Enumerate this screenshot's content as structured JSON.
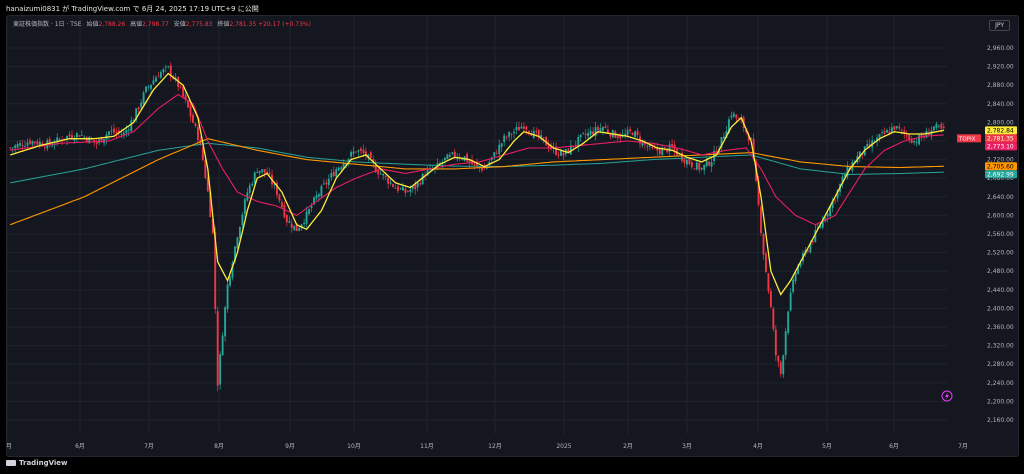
{
  "header": {
    "publish_text": "hanaizumi0831 が TradingView.com で 6月 24, 2025 17:19 UTC+9 に公開"
  },
  "legend": {
    "symbol": "東証株価指数 · 1日 · TSE",
    "open_label": "始値",
    "open": "2,788.26",
    "high_label": "高値",
    "high": "2,798.77",
    "low_label": "安値",
    "low": "2,775.83",
    "close_label": "終値",
    "close": "2,781.35",
    "change": "+20.17 (+0.73%)"
  },
  "currency": "JPY",
  "footer": {
    "brand": "TradingView"
  },
  "chart_data": {
    "type": "candlestick",
    "y_ticks": [
      "2,960.00",
      "2,920.00",
      "2,880.00",
      "2,840.00",
      "2,800.00",
      "2,760.00",
      "2,720.00",
      "2,680.00",
      "2,640.00",
      "2,600.00",
      "2,560.00",
      "2,520.00",
      "2,480.00",
      "2,440.00",
      "2,400.00",
      "2,360.00",
      "2,320.00",
      "2,280.00",
      "2,240.00",
      "2,200.00",
      "2,160.00"
    ],
    "ylim": [
      2130,
      2990
    ],
    "x_ticks": [
      "5月",
      "6月",
      "7月",
      "8月",
      "9月",
      "10月",
      "11月",
      "12月",
      "2025",
      "2月",
      "3月",
      "4月",
      "5月",
      "6月",
      "7月"
    ],
    "price_labels": [
      {
        "id": "ma-short",
        "text": "2,782.84",
        "value": 2782.84,
        "color": "#ffeb3b",
        "text_color": "#000000"
      },
      {
        "id": "symbol",
        "name": "TOPIX",
        "text": "2,781.35",
        "value": 2781.35,
        "color": "#f23645",
        "text_color": "#ffffff"
      },
      {
        "id": "ma-mid",
        "text": "2,773.10",
        "value": 2773.1,
        "color": "#e91e63",
        "text_color": "#ffffff"
      },
      {
        "id": "ma-long",
        "text": "2,705.60",
        "value": 2705.6,
        "color": "#ff9800",
        "text_color": "#000000"
      },
      {
        "id": "ma-xlong",
        "text": "2,692.99",
        "value": 2692.99,
        "color": "#26a69a",
        "text_color": "#ffffff"
      }
    ],
    "colors": {
      "up": "#26a69a",
      "down": "#f23645",
      "ma_short": "#ffeb3b",
      "ma_mid": "#e91e63",
      "ma_long": "#ff9800",
      "ma_xlong": "#26a69a",
      "background": "#14171f",
      "grid": "#1f232d"
    },
    "close_path": [
      [
        0,
        2745
      ],
      [
        8,
        2760
      ],
      [
        16,
        2752
      ],
      [
        22,
        2768
      ],
      [
        28,
        2775
      ],
      [
        35,
        2755
      ],
      [
        40,
        2780
      ],
      [
        46,
        2775
      ],
      [
        50,
        2810
      ],
      [
        55,
        2870
      ],
      [
        60,
        2905
      ],
      [
        64,
        2915
      ],
      [
        68,
        2880
      ],
      [
        72,
        2830
      ],
      [
        76,
        2770
      ],
      [
        78,
        2720
      ],
      [
        80,
        2650
      ],
      [
        82,
        2560
      ],
      [
        83,
        2400
      ],
      [
        84,
        2240
      ],
      [
        86,
        2350
      ],
      [
        88,
        2450
      ],
      [
        92,
        2560
      ],
      [
        96,
        2650
      ],
      [
        100,
        2700
      ],
      [
        104,
        2690
      ],
      [
        108,
        2650
      ],
      [
        112,
        2590
      ],
      [
        116,
        2570
      ],
      [
        120,
        2600
      ],
      [
        124,
        2640
      ],
      [
        128,
        2670
      ],
      [
        132,
        2700
      ],
      [
        136,
        2720
      ],
      [
        140,
        2740
      ],
      [
        144,
        2730
      ],
      [
        148,
        2700
      ],
      [
        152,
        2680
      ],
      [
        156,
        2660
      ],
      [
        160,
        2650
      ],
      [
        164,
        2660
      ],
      [
        168,
        2690
      ],
      [
        172,
        2700
      ],
      [
        176,
        2720
      ],
      [
        180,
        2730
      ],
      [
        184,
        2725
      ],
      [
        188,
        2705
      ],
      [
        192,
        2700
      ],
      [
        196,
        2730
      ],
      [
        200,
        2765
      ],
      [
        204,
        2780
      ],
      [
        208,
        2795
      ],
      [
        212,
        2775
      ],
      [
        216,
        2760
      ],
      [
        220,
        2740
      ],
      [
        224,
        2730
      ],
      [
        228,
        2750
      ],
      [
        232,
        2770
      ],
      [
        236,
        2780
      ],
      [
        240,
        2790
      ],
      [
        244,
        2775
      ],
      [
        248,
        2770
      ],
      [
        252,
        2780
      ],
      [
        256,
        2755
      ],
      [
        260,
        2740
      ],
      [
        264,
        2740
      ],
      [
        268,
        2745
      ],
      [
        272,
        2725
      ],
      [
        276,
        2710
      ],
      [
        280,
        2700
      ],
      [
        284,
        2720
      ],
      [
        288,
        2760
      ],
      [
        292,
        2820
      ],
      [
        296,
        2800
      ],
      [
        300,
        2760
      ],
      [
        303,
        2620
      ],
      [
        305,
        2520
      ],
      [
        308,
        2400
      ],
      [
        310,
        2300
      ],
      [
        312,
        2260
      ],
      [
        315,
        2400
      ],
      [
        318,
        2480
      ],
      [
        322,
        2520
      ],
      [
        326,
        2560
      ],
      [
        330,
        2600
      ],
      [
        334,
        2640
      ],
      [
        338,
        2690
      ],
      [
        342,
        2720
      ],
      [
        346,
        2740
      ],
      [
        350,
        2760
      ],
      [
        354,
        2775
      ],
      [
        358,
        2790
      ],
      [
        362,
        2775
      ],
      [
        366,
        2760
      ],
      [
        370,
        2770
      ],
      [
        374,
        2790
      ],
      [
        378,
        2781
      ]
    ],
    "ma_short_path": [
      [
        0,
        2730
      ],
      [
        12,
        2750
      ],
      [
        24,
        2765
      ],
      [
        34,
        2765
      ],
      [
        42,
        2770
      ],
      [
        50,
        2800
      ],
      [
        58,
        2870
      ],
      [
        64,
        2905
      ],
      [
        70,
        2880
      ],
      [
        76,
        2810
      ],
      [
        80,
        2700
      ],
      [
        84,
        2500
      ],
      [
        88,
        2460
      ],
      [
        92,
        2520
      ],
      [
        96,
        2610
      ],
      [
        100,
        2680
      ],
      [
        104,
        2690
      ],
      [
        110,
        2650
      ],
      [
        116,
        2580
      ],
      [
        120,
        2570
      ],
      [
        126,
        2610
      ],
      [
        132,
        2680
      ],
      [
        138,
        2720
      ],
      [
        144,
        2730
      ],
      [
        150,
        2700
      ],
      [
        156,
        2670
      ],
      [
        162,
        2660
      ],
      [
        168,
        2685
      ],
      [
        174,
        2710
      ],
      [
        180,
        2725
      ],
      [
        186,
        2720
      ],
      [
        192,
        2705
      ],
      [
        198,
        2720
      ],
      [
        204,
        2760
      ],
      [
        208,
        2780
      ],
      [
        214,
        2770
      ],
      [
        220,
        2745
      ],
      [
        226,
        2735
      ],
      [
        232,
        2755
      ],
      [
        238,
        2780
      ],
      [
        244,
        2775
      ],
      [
        250,
        2770
      ],
      [
        256,
        2760
      ],
      [
        262,
        2745
      ],
      [
        268,
        2740
      ],
      [
        274,
        2725
      ],
      [
        280,
        2715
      ],
      [
        286,
        2730
      ],
      [
        292,
        2790
      ],
      [
        296,
        2810
      ],
      [
        300,
        2760
      ],
      [
        304,
        2640
      ],
      [
        308,
        2480
      ],
      [
        312,
        2430
      ],
      [
        316,
        2460
      ],
      [
        322,
        2520
      ],
      [
        328,
        2580
      ],
      [
        334,
        2640
      ],
      [
        340,
        2700
      ],
      [
        346,
        2740
      ],
      [
        352,
        2765
      ],
      [
        358,
        2780
      ],
      [
        364,
        2775
      ],
      [
        370,
        2775
      ],
      [
        378,
        2782.84
      ]
    ],
    "ma_mid_path": [
      [
        0,
        2740
      ],
      [
        20,
        2755
      ],
      [
        40,
        2760
      ],
      [
        50,
        2780
      ],
      [
        60,
        2830
      ],
      [
        68,
        2860
      ],
      [
        74,
        2840
      ],
      [
        80,
        2760
      ],
      [
        86,
        2700
      ],
      [
        92,
        2650
      ],
      [
        100,
        2630
      ],
      [
        108,
        2620
      ],
      [
        116,
        2600
      ],
      [
        124,
        2630
      ],
      [
        132,
        2660
      ],
      [
        140,
        2680
      ],
      [
        150,
        2700
      ],
      [
        160,
        2690
      ],
      [
        170,
        2700
      ],
      [
        180,
        2710
      ],
      [
        190,
        2715
      ],
      [
        200,
        2730
      ],
      [
        210,
        2745
      ],
      [
        220,
        2745
      ],
      [
        230,
        2750
      ],
      [
        240,
        2755
      ],
      [
        250,
        2760
      ],
      [
        260,
        2755
      ],
      [
        270,
        2745
      ],
      [
        280,
        2730
      ],
      [
        290,
        2740
      ],
      [
        298,
        2745
      ],
      [
        304,
        2700
      ],
      [
        310,
        2640
      ],
      [
        318,
        2600
      ],
      [
        326,
        2580
      ],
      [
        334,
        2600
      ],
      [
        340,
        2650
      ],
      [
        346,
        2700
      ],
      [
        354,
        2740
      ],
      [
        362,
        2760
      ],
      [
        370,
        2770
      ],
      [
        378,
        2773.1
      ]
    ],
    "ma_long_path": [
      [
        0,
        2580
      ],
      [
        30,
        2640
      ],
      [
        60,
        2720
      ],
      [
        80,
        2765
      ],
      [
        100,
        2740
      ],
      [
        120,
        2720
      ],
      [
        140,
        2710
      ],
      [
        160,
        2700
      ],
      [
        180,
        2700
      ],
      [
        200,
        2705
      ],
      [
        220,
        2715
      ],
      [
        240,
        2720
      ],
      [
        260,
        2725
      ],
      [
        280,
        2730
      ],
      [
        300,
        2735
      ],
      [
        320,
        2715
      ],
      [
        340,
        2705
      ],
      [
        360,
        2703
      ],
      [
        378,
        2705.6
      ]
    ],
    "ma_xlong_path": [
      [
        0,
        2670
      ],
      [
        30,
        2700
      ],
      [
        60,
        2740
      ],
      [
        80,
        2755
      ],
      [
        100,
        2745
      ],
      [
        120,
        2725
      ],
      [
        140,
        2715
      ],
      [
        160,
        2710
      ],
      [
        180,
        2706
      ],
      [
        200,
        2705
      ],
      [
        220,
        2708
      ],
      [
        240,
        2712
      ],
      [
        260,
        2720
      ],
      [
        280,
        2725
      ],
      [
        300,
        2730
      ],
      [
        320,
        2700
      ],
      [
        340,
        2688
      ],
      [
        360,
        2690
      ],
      [
        378,
        2692.99
      ]
    ]
  }
}
